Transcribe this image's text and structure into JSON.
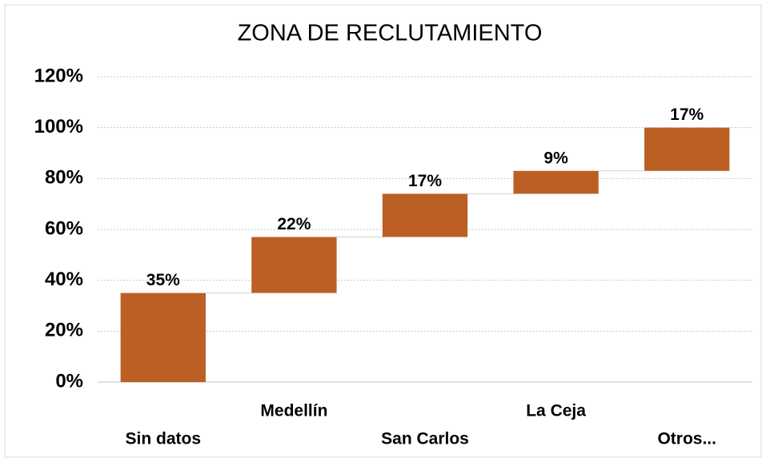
{
  "chart_data": {
    "type": "waterfall",
    "title": "ZONA DE RECLUTAMIENTO",
    "categories": [
      "Sin datos",
      "Medellín",
      "San Carlos",
      "La Ceja",
      "Otros..."
    ],
    "values": [
      35,
      22,
      17,
      9,
      17
    ],
    "value_labels": [
      "35%",
      "22%",
      "17%",
      "9%",
      "17%"
    ],
    "color": "#bb5f24",
    "ylim": [
      0,
      120
    ],
    "yticks": [
      {
        "value": 0,
        "label": "0%"
      },
      {
        "value": 20,
        "label": "20%"
      },
      {
        "value": 40,
        "label": "40%"
      },
      {
        "value": 60,
        "label": "60%"
      },
      {
        "value": 80,
        "label": "80%"
      },
      {
        "value": 100,
        "label": "100%"
      },
      {
        "value": 120,
        "label": "120%"
      }
    ],
    "grid": true
  }
}
